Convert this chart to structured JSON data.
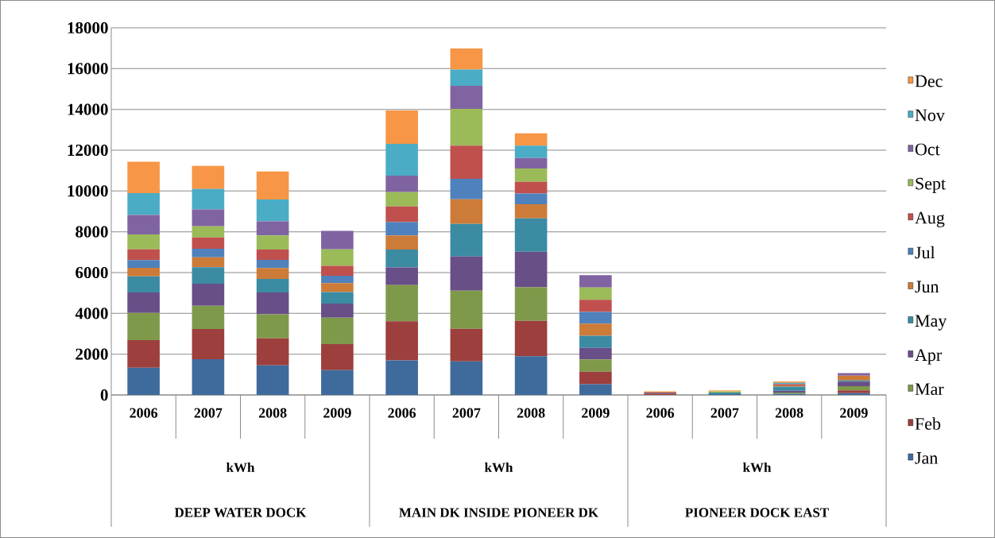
{
  "chart_data": {
    "type": "bar",
    "stacked": true,
    "grid": "y",
    "legend": "right",
    "categories": [
      "2006",
      "2007",
      "2008",
      "2009",
      "2006",
      "2007",
      "2008",
      "2009",
      "2006",
      "2007",
      "2008",
      "2009"
    ],
    "annotations": [
      "kWh",
      "DEEP WATER DOCK",
      "kWh",
      "MAIN DK INSIDE PIONEER DK",
      "kWh",
      "PIONEER DOCK EAST"
    ],
    "ylim": [
      0,
      18000
    ],
    "yticks": [
      0,
      2000,
      4000,
      6000,
      8000,
      10000,
      12000,
      14000,
      16000,
      18000
    ],
    "series": [
      {
        "name": "Jan",
        "color": "#3f6a9c",
        "values": [
          1330,
          1750,
          1450,
          1220,
          1690,
          1650,
          1900,
          530,
          null,
          40,
          60,
          90
        ]
      },
      {
        "name": "Feb",
        "color": "#9c3f3d",
        "values": [
          1360,
          1480,
          1330,
          1270,
          1920,
          1590,
          1730,
          610,
          60,
          null,
          null,
          130
        ]
      },
      {
        "name": "Mar",
        "color": "#7f994a",
        "values": [
          1330,
          1140,
          1170,
          1300,
          1780,
          1870,
          1650,
          600,
          null,
          null,
          60,
          210
        ]
      },
      {
        "name": "Apr",
        "color": "#684f87",
        "values": [
          1010,
          1080,
          1080,
          690,
          860,
          1680,
          1740,
          570,
          60,
          null,
          80,
          220
        ]
      },
      {
        "name": "May",
        "color": "#3b8ba3",
        "values": [
          780,
          810,
          660,
          570,
          880,
          1600,
          1640,
          590,
          null,
          80,
          210,
          60
        ]
      },
      {
        "name": "Jun",
        "color": "#cd7b38",
        "values": [
          420,
          490,
          530,
          430,
          690,
          1200,
          690,
          600,
          null,
          null,
          60,
          230
        ]
      },
      {
        "name": "Jul",
        "color": "#4f81bd",
        "values": [
          380,
          420,
          400,
          360,
          650,
          1010,
          530,
          570,
          null,
          null,
          null,
          null
        ]
      },
      {
        "name": "Aug",
        "color": "#c0504d",
        "values": [
          530,
          550,
          510,
          490,
          770,
          1620,
          570,
          600,
          null,
          null,
          60,
          null
        ]
      },
      {
        "name": "Sept",
        "color": "#9bbb59",
        "values": [
          730,
          550,
          690,
          810,
          700,
          1810,
          650,
          600,
          null,
          60,
          null,
          null
        ]
      },
      {
        "name": "Oct",
        "color": "#8064a2",
        "values": [
          950,
          830,
          690,
          910,
          810,
          1130,
          520,
          600,
          null,
          null,
          null,
          130
        ]
      },
      {
        "name": "Nov",
        "color": "#4bacc6",
        "values": [
          1080,
          1000,
          1070,
          null,
          1560,
          790,
          600,
          null,
          null,
          null,
          60,
          null
        ]
      },
      {
        "name": "Dec",
        "color": "#f79646",
        "values": [
          1530,
          1130,
          1380,
          null,
          1640,
          1040,
          610,
          null,
          60,
          40,
          70,
          null
        ]
      }
    ]
  }
}
